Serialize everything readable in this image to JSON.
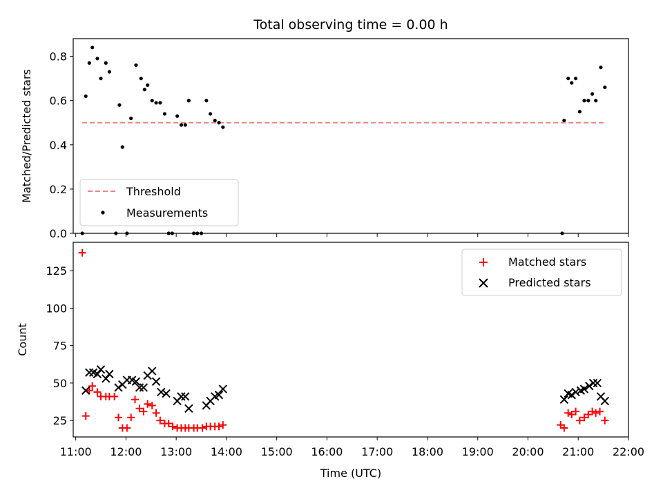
{
  "chart_data": {
    "title": "Total observing time = 0.00 h",
    "xlabel": "Time (UTC)",
    "x_ticks": [
      "11:00",
      "12:00",
      "13:00",
      "14:00",
      "15:00",
      "16:00",
      "17:00",
      "18:00",
      "19:00",
      "20:00",
      "21:00",
      "22:00"
    ],
    "xlim_hours": [
      10.95,
      22.0
    ],
    "top": {
      "type": "scatter",
      "ylabel": "Matched/Predicted stars",
      "ylim": [
        0,
        0.88
      ],
      "y_ticks": [
        "0.0",
        "0.2",
        "0.4",
        "0.6",
        "0.8"
      ],
      "y_tick_values": [
        0,
        0.2,
        0.4,
        0.6,
        0.8
      ],
      "legend_position": "lower-left",
      "threshold": {
        "name": "Threshold",
        "value": 0.5,
        "x_range": [
          11.13,
          21.53
        ],
        "color": "#f08080"
      },
      "measurements": {
        "name": "Measurements",
        "color": "#000000",
        "points": [
          [
            11.13,
            0.0
          ],
          [
            11.2,
            0.62
          ],
          [
            11.27,
            0.77
          ],
          [
            11.33,
            0.84
          ],
          [
            11.43,
            0.79
          ],
          [
            11.5,
            0.7
          ],
          [
            11.6,
            0.77
          ],
          [
            11.67,
            0.73
          ],
          [
            11.8,
            0.0
          ],
          [
            11.87,
            0.58
          ],
          [
            11.93,
            0.39
          ],
          [
            12.02,
            0.0
          ],
          [
            12.1,
            0.52
          ],
          [
            12.2,
            0.76
          ],
          [
            12.3,
            0.7
          ],
          [
            12.37,
            0.65
          ],
          [
            12.43,
            0.67
          ],
          [
            12.52,
            0.6
          ],
          [
            12.6,
            0.59
          ],
          [
            12.68,
            0.59
          ],
          [
            12.77,
            0.54
          ],
          [
            12.85,
            0.0
          ],
          [
            12.92,
            0.0
          ],
          [
            13.02,
            0.53
          ],
          [
            13.1,
            0.49
          ],
          [
            13.18,
            0.49
          ],
          [
            13.25,
            0.6
          ],
          [
            13.35,
            0.0
          ],
          [
            13.42,
            0.0
          ],
          [
            13.5,
            0.0
          ],
          [
            13.6,
            0.6
          ],
          [
            13.68,
            0.54
          ],
          [
            13.77,
            0.51
          ],
          [
            13.85,
            0.5
          ],
          [
            13.93,
            0.48
          ],
          [
            20.68,
            0.0
          ],
          [
            20.72,
            0.51
          ],
          [
            20.8,
            0.7
          ],
          [
            20.87,
            0.68
          ],
          [
            20.95,
            0.7
          ],
          [
            21.03,
            0.55
          ],
          [
            21.12,
            0.6
          ],
          [
            21.2,
            0.6
          ],
          [
            21.28,
            0.63
          ],
          [
            21.35,
            0.6
          ],
          [
            21.45,
            0.75
          ],
          [
            21.53,
            0.66
          ]
        ]
      }
    },
    "bottom": {
      "type": "scatter",
      "ylabel": "Count",
      "ylim": [
        14,
        144
      ],
      "y_ticks": [
        "25",
        "50",
        "75",
        "100",
        "125"
      ],
      "y_tick_values": [
        25,
        50,
        75,
        100,
        125
      ],
      "legend_position": "upper-right",
      "series": [
        {
          "name": "Matched stars",
          "marker": "+",
          "color": "#ff0000",
          "points": [
            [
              11.13,
              137
            ],
            [
              11.2,
              28
            ],
            [
              11.27,
              45
            ],
            [
              11.33,
              48
            ],
            [
              11.43,
              44
            ],
            [
              11.5,
              41
            ],
            [
              11.6,
              41
            ],
            [
              11.67,
              41
            ],
            [
              11.77,
              41
            ],
            [
              11.85,
              27
            ],
            [
              11.93,
              20
            ],
            [
              12.02,
              20
            ],
            [
              12.1,
              27
            ],
            [
              12.18,
              39
            ],
            [
              12.27,
              33
            ],
            [
              12.35,
              31
            ],
            [
              12.43,
              36
            ],
            [
              12.52,
              35
            ],
            [
              12.6,
              30
            ],
            [
              12.68,
              25
            ],
            [
              12.77,
              23
            ],
            [
              12.85,
              23
            ],
            [
              12.93,
              21
            ],
            [
              13.02,
              20
            ],
            [
              13.1,
              20
            ],
            [
              13.18,
              20
            ],
            [
              13.25,
              20
            ],
            [
              13.35,
              20
            ],
            [
              13.42,
              20
            ],
            [
              13.52,
              20
            ],
            [
              13.6,
              21
            ],
            [
              13.68,
              21
            ],
            [
              13.77,
              21
            ],
            [
              13.85,
              21
            ],
            [
              13.93,
              22
            ],
            [
              20.65,
              22
            ],
            [
              20.72,
              20
            ],
            [
              20.8,
              30
            ],
            [
              20.87,
              29
            ],
            [
              20.95,
              31
            ],
            [
              21.03,
              25
            ],
            [
              21.12,
              27
            ],
            [
              21.2,
              29
            ],
            [
              21.28,
              31
            ],
            [
              21.35,
              30
            ],
            [
              21.43,
              31
            ],
            [
              21.53,
              25
            ]
          ]
        },
        {
          "name": "Predicted stars",
          "marker": "x",
          "color": "#000000",
          "points": [
            [
              11.2,
              45
            ],
            [
              11.27,
              57
            ],
            [
              11.35,
              57
            ],
            [
              11.43,
              56
            ],
            [
              11.5,
              59
            ],
            [
              11.6,
              53
            ],
            [
              11.67,
              56
            ],
            [
              11.85,
              47
            ],
            [
              11.93,
              49
            ],
            [
              12.02,
              52
            ],
            [
              12.12,
              52
            ],
            [
              12.2,
              51
            ],
            [
              12.27,
              47
            ],
            [
              12.35,
              47
            ],
            [
              12.43,
              55
            ],
            [
              12.52,
              58
            ],
            [
              12.6,
              51
            ],
            [
              12.7,
              44
            ],
            [
              12.8,
              43
            ],
            [
              13.02,
              38
            ],
            [
              13.1,
              41
            ],
            [
              13.18,
              41
            ],
            [
              13.25,
              33
            ],
            [
              13.6,
              35
            ],
            [
              13.68,
              38
            ],
            [
              13.77,
              41
            ],
            [
              13.85,
              42
            ],
            [
              13.93,
              46
            ],
            [
              20.72,
              39
            ],
            [
              20.8,
              43
            ],
            [
              20.87,
              42
            ],
            [
              20.95,
              44
            ],
            [
              21.05,
              45
            ],
            [
              21.12,
              46
            ],
            [
              21.22,
              48
            ],
            [
              21.3,
              50
            ],
            [
              21.38,
              50
            ],
            [
              21.45,
              41
            ],
            [
              21.53,
              38
            ]
          ]
        }
      ]
    }
  }
}
